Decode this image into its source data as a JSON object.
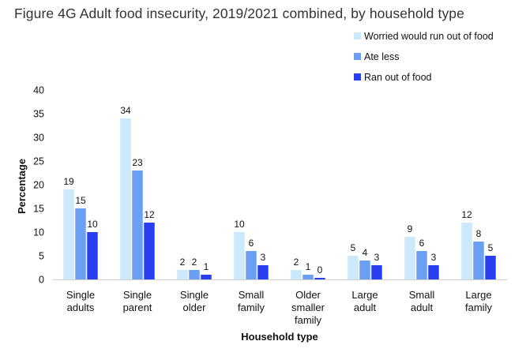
{
  "title": "Figure 4G Adult food insecurity, 2019/2021 combined, by household type",
  "chart_data": {
    "type": "bar",
    "xlabel": "Household type",
    "ylabel": "Percentage",
    "ylim": [
      0,
      40
    ],
    "yticks": [
      0,
      5,
      10,
      15,
      20,
      25,
      30,
      35,
      40
    ],
    "grid": false,
    "legend_position": "top-right",
    "categories": [
      [
        "Single",
        "adults"
      ],
      [
        "Single",
        "parent"
      ],
      [
        "Single",
        "older"
      ],
      [
        "Small",
        "family"
      ],
      [
        "Older",
        "smaller",
        "family"
      ],
      [
        "Large",
        "adult"
      ],
      [
        "Small",
        "adult"
      ],
      [
        "Large",
        "family"
      ]
    ],
    "series": [
      {
        "name": "Worried would run out of food",
        "color": "#cce8fb",
        "values": [
          19,
          34,
          2,
          10,
          2,
          5,
          9,
          12
        ],
        "labels": [
          "19",
          "34",
          "2",
          "10",
          "2",
          "5",
          "9",
          "12"
        ]
      },
      {
        "name": "Ate less",
        "color": "#6a9ff2",
        "values": [
          15,
          23,
          2,
          6,
          1,
          4,
          6,
          8
        ],
        "labels": [
          "15",
          "23",
          "2",
          "6",
          "1",
          "4",
          "6",
          "8"
        ]
      },
      {
        "name": "Ran out of food",
        "color": "#2a3ff0",
        "values": [
          10,
          12,
          1,
          3,
          0,
          3,
          3,
          5
        ],
        "labels": [
          "10",
          "12",
          "1",
          "3",
          "0",
          "3",
          "3",
          "5"
        ]
      }
    ]
  }
}
